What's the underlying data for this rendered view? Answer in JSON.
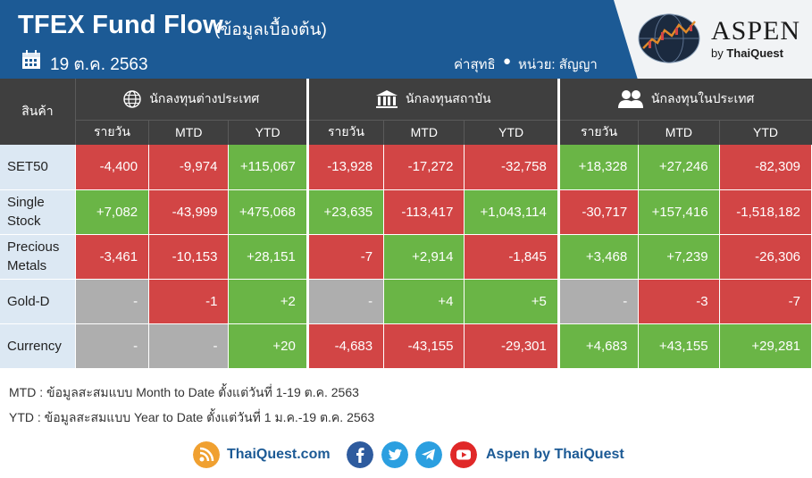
{
  "header": {
    "title": "TFEX Fund Flow",
    "subtitle": "(ข้อมูลเบื้องต้น)",
    "date": "19 ต.ค. 2563",
    "net_label": "ค่าสุทธิ",
    "bullet": "●",
    "unit_label": "หน่วย: สัญญา",
    "logo_name": "ASPEN",
    "logo_by": "by",
    "logo_company": "ThaiQuest"
  },
  "table": {
    "product_header": "สินค้า",
    "groups": [
      {
        "label": "นักลงทุนต่างประเทศ",
        "icon": "globe-icon"
      },
      {
        "label": "นักลงทุนสถาบัน",
        "icon": "institution-icon"
      },
      {
        "label": "นักลงทุนในประเทศ",
        "icon": "people-icon"
      }
    ],
    "subheaders": [
      "รายวัน",
      "MTD",
      "YTD",
      "รายวัน",
      "MTD",
      "YTD",
      "รายวัน",
      "MTD",
      "YTD"
    ],
    "rows": [
      {
        "product": "SET50",
        "values": [
          "-4,400",
          "-9,974",
          "+115,067",
          "-13,928",
          "-17,272",
          "-32,758",
          "+18,328",
          "+27,246",
          "-82,309"
        ]
      },
      {
        "product": "Single Stock",
        "values": [
          "+7,082",
          "-43,999",
          "+475,068",
          "+23,635",
          "-113,417",
          "+1,043,114",
          "-30,717",
          "+157,416",
          "-1,518,182"
        ]
      },
      {
        "product": "Precious Metals",
        "values": [
          "-3,461",
          "-10,153",
          "+28,151",
          "-7",
          "+2,914",
          "-1,845",
          "+3,468",
          "+7,239",
          "-26,306"
        ]
      },
      {
        "product": "Gold-D",
        "values": [
          "-",
          "-1",
          "+2",
          "-",
          "+4",
          "+5",
          "-",
          "-3",
          "-7"
        ]
      },
      {
        "product": "Currency",
        "values": [
          "-",
          "-",
          "+20",
          "-4,683",
          "-43,155",
          "-29,301",
          "+4,683",
          "+43,155",
          "+29,281"
        ]
      }
    ]
  },
  "notes": {
    "mtd": "MTD : ข้อมูลสะสมแบบ Month to Date ตั้งแต่วันที่ 1-19 ต.ค. 2563",
    "ytd": "YTD : ข้อมูลสะสมแบบ Year to Date ตั้งแต่วันที่ 1 ม.ค.-19 ต.ค. 2563"
  },
  "footer": {
    "website": "ThaiQuest.com",
    "brand": "Aspen by ThaiQuest"
  },
  "colors": {
    "header_bg": "#1c5a95",
    "negative": "#d24545",
    "positive": "#6ab546",
    "neutral": "#aeaeae",
    "table_head": "#3f3f3f",
    "product_bg": "#dce8f3"
  }
}
